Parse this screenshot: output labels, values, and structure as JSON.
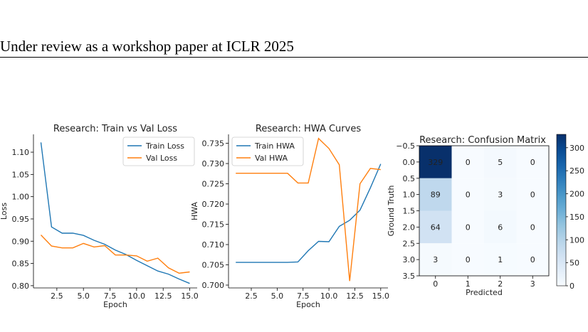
{
  "header": {
    "text": "Under review as a workshop paper at ICLR 2025"
  },
  "chart_data": [
    {
      "type": "line",
      "title": "Research: Train vs Val Loss",
      "xlabel": "Epoch",
      "ylabel": "Loss",
      "x": [
        1,
        2,
        3,
        4,
        5,
        6,
        7,
        8,
        9,
        10,
        11,
        12,
        13,
        14,
        15
      ],
      "xlim": [
        0.3,
        15.7
      ],
      "ylim": [
        0.795,
        1.14
      ],
      "xticks": [
        "2.5",
        "5.0",
        "7.5",
        "10.0",
        "12.5",
        "15.0"
      ],
      "yticks": [
        "0.80",
        "0.85",
        "0.90",
        "0.95",
        "1.00",
        "1.05",
        "1.10"
      ],
      "legend": "top-right",
      "grid": false,
      "series": [
        {
          "name": "Train Loss",
          "color": "#1f77b4",
          "values": [
            1.122,
            0.932,
            0.918,
            0.918,
            0.913,
            0.902,
            0.893,
            0.88,
            0.87,
            0.857,
            0.845,
            0.833,
            0.826,
            0.815,
            0.805
          ]
        },
        {
          "name": "Val Loss",
          "color": "#ff7f0e",
          "values": [
            0.914,
            0.889,
            0.885,
            0.885,
            0.895,
            0.887,
            0.89,
            0.869,
            0.869,
            0.867,
            0.855,
            0.862,
            0.84,
            0.828,
            0.831
          ]
        }
      ]
    },
    {
      "type": "line",
      "title": "Research: HWA Curves",
      "xlabel": "Epoch",
      "ylabel": "HWA",
      "x": [
        1,
        2,
        3,
        4,
        5,
        6,
        7,
        8,
        9,
        10,
        11,
        12,
        13,
        14,
        15
      ],
      "xlim": [
        0.3,
        15.7
      ],
      "ylim": [
        0.6993,
        0.7372
      ],
      "xticks": [
        "2.5",
        "5.0",
        "7.5",
        "10.0",
        "12.5",
        "15.0"
      ],
      "yticks": [
        "0.700",
        "0.705",
        "0.710",
        "0.715",
        "0.720",
        "0.725",
        "0.730",
        "0.735"
      ],
      "legend": "top-left",
      "grid": false,
      "series": [
        {
          "name": "Train HWA",
          "color": "#1f77b4",
          "values": [
            0.7056,
            0.7056,
            0.7056,
            0.7056,
            0.7056,
            0.7056,
            0.7057,
            0.7085,
            0.7108,
            0.7107,
            0.7145,
            0.716,
            0.7185,
            0.724,
            0.7299
          ]
        },
        {
          "name": "Val HWA",
          "color": "#ff7f0e",
          "values": [
            0.7276,
            0.7276,
            0.7276,
            0.7276,
            0.7276,
            0.7276,
            0.7252,
            0.7252,
            0.7362,
            0.7337,
            0.7297,
            0.701,
            0.725,
            0.7288,
            0.7285
          ]
        }
      ]
    },
    {
      "type": "heatmap",
      "title": "Research: Confusion Matrix",
      "xlabel": "Predicted",
      "ylabel": "Ground Truth",
      "xticks": [
        "0",
        "1",
        "2",
        "3"
      ],
      "yticks": [
        "−0.5",
        "0.0",
        "0.5",
        "1.0",
        "1.5",
        "2.0",
        "2.5",
        "3.0",
        "3.5"
      ],
      "values": [
        [
          329,
          0,
          5,
          0
        ],
        [
          89,
          0,
          3,
          0
        ],
        [
          64,
          0,
          6,
          0
        ],
        [
          3,
          0,
          1,
          0
        ]
      ],
      "vmin": 0,
      "vmax": 329,
      "colormap": "Blues",
      "colorbar_ticks": [
        "0",
        "50",
        "100",
        "150",
        "200",
        "250",
        "300"
      ]
    }
  ]
}
